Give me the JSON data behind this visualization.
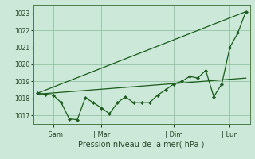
{
  "background_color": "#cce8d8",
  "grid_color": "#88bb99",
  "line_color": "#1a5c1a",
  "spine_color": "#4a7a4a",
  "tick_color": "#2a4a2a",
  "title": "Pression niveau de la mer( hPa )",
  "ylim": [
    1016.5,
    1023.5
  ],
  "yticks": [
    1017,
    1018,
    1019,
    1020,
    1021,
    1022,
    1023
  ],
  "xtick_labels": [
    "| Sam",
    "| Mar",
    "| Dim",
    "| Lun"
  ],
  "xtick_positions": [
    2,
    8,
    17,
    24
  ],
  "xlim": [
    -0.5,
    26.5
  ],
  "smooth_line_x": [
    0,
    26
  ],
  "smooth_line_y": [
    1018.3,
    1023.1
  ],
  "flat_line_x": [
    0,
    26
  ],
  "flat_line_y": [
    1018.25,
    1019.2
  ],
  "jagged_line": {
    "x": [
      0,
      1,
      2,
      3,
      4,
      5,
      6,
      7,
      8,
      9,
      10,
      11,
      12,
      13,
      14,
      15,
      16,
      17,
      18,
      19,
      20,
      21,
      22,
      23,
      24,
      25,
      26
    ],
    "y": [
      1018.3,
      1018.25,
      1018.2,
      1017.75,
      1016.8,
      1016.75,
      1018.05,
      1017.75,
      1017.45,
      1017.1,
      1017.75,
      1018.1,
      1017.75,
      1017.75,
      1017.75,
      1018.2,
      1018.5,
      1018.85,
      1019.0,
      1019.3,
      1019.2,
      1019.65,
      1018.1,
      1018.85,
      1021.0,
      1021.85,
      1023.1
    ]
  },
  "title_fontsize": 7,
  "ytick_fontsize": 5.5,
  "xtick_fontsize": 6
}
